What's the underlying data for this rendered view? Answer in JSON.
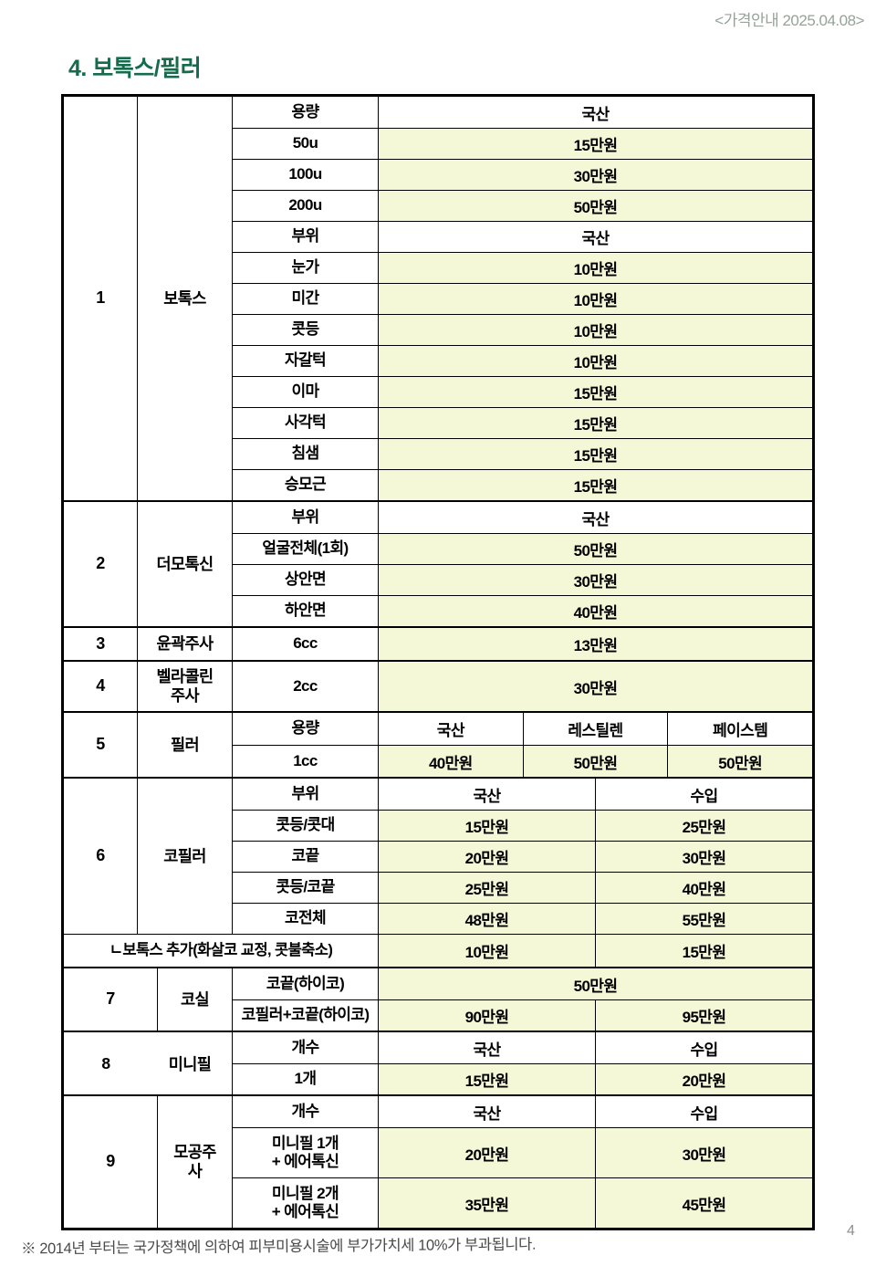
{
  "header": {
    "date_note": "<가격안내 2025.04.08>"
  },
  "page": {
    "title": "4. 보톡스/필러",
    "footnote": "※ 2014년 부터는 국가정책에 의하여 피부미용시술에 부가가치세 10%가 부과됩니다.",
    "number": "4"
  },
  "colors": {
    "accent_green": "#156b4c",
    "price_cell_bg": "#f4f8d7",
    "date_note_gray": "#96a29a",
    "footnote_gray": "#4a4a4a"
  },
  "t": {
    "s1": {
      "no": "1",
      "cat": "보톡스",
      "r": [
        [
          "용량",
          "국산"
        ],
        [
          "50u",
          "15만원"
        ],
        [
          "100u",
          "30만원"
        ],
        [
          "200u",
          "50만원"
        ],
        [
          "부위",
          "국산"
        ],
        [
          "눈가",
          "10만원"
        ],
        [
          "미간",
          "10만원"
        ],
        [
          "콧등",
          "10만원"
        ],
        [
          "자갈턱",
          "10만원"
        ],
        [
          "이마",
          "15만원"
        ],
        [
          "사각턱",
          "15만원"
        ],
        [
          "침샘",
          "15만원"
        ],
        [
          "승모근",
          "15만원"
        ]
      ]
    },
    "s2": {
      "no": "2",
      "cat": "더모톡신",
      "r": [
        [
          "부위",
          "국산"
        ],
        [
          "얼굴전체(1회)",
          "50만원"
        ],
        [
          "상안면",
          "30만원"
        ],
        [
          "하안면",
          "40만원"
        ]
      ]
    },
    "s3": {
      "no": "3",
      "cat": "윤곽주사",
      "r": [
        [
          "6cc",
          "13만원"
        ]
      ]
    },
    "s4": {
      "no": "4",
      "cat": "벨라콜린\n주사",
      "r": [
        [
          "2cc",
          "30만원"
        ]
      ]
    },
    "s5": {
      "no": "5",
      "cat": "필러",
      "r": [
        [
          "용량",
          "국산",
          "레스틸렌",
          "페이스템"
        ],
        [
          "1cc",
          "40만원",
          "50만원",
          "50만원"
        ]
      ]
    },
    "s6": {
      "no": "6",
      "cat": "코필러",
      "r": [
        [
          "부위",
          "국산",
          "수입"
        ],
        [
          "콧등/콧대",
          "15만원",
          "25만원"
        ],
        [
          "코끝",
          "20만원",
          "30만원"
        ],
        [
          "콧등/코끝",
          "25만원",
          "40만원"
        ],
        [
          "코전체",
          "48만원",
          "55만원"
        ]
      ]
    },
    "addon": {
      "label": "ㄴ보톡스 추가(화살코 교정, 콧불축소)",
      "p1": "10만원",
      "p2": "15만원"
    },
    "s7": {
      "no": "7",
      "cat": "코실",
      "r": [
        [
          "코끝(하이코)",
          "50만원"
        ],
        [
          "코필러+코끝(하이코)",
          "90만원",
          "95만원"
        ]
      ]
    },
    "s8": {
      "no": "8",
      "cat": "미니필",
      "r": [
        [
          "개수",
          "국산",
          "수입"
        ],
        [
          "1개",
          "15만원",
          "20만원"
        ]
      ]
    },
    "s9": {
      "no": "9",
      "cat": "모공주\n사",
      "r": [
        [
          "개수",
          "국산",
          "수입"
        ],
        [
          "미니필 1개\n+ 에어톡신",
          "20만원",
          "30만원"
        ],
        [
          "미니필 2개\n+ 에어톡신",
          "35만원",
          "45만원"
        ]
      ]
    }
  }
}
